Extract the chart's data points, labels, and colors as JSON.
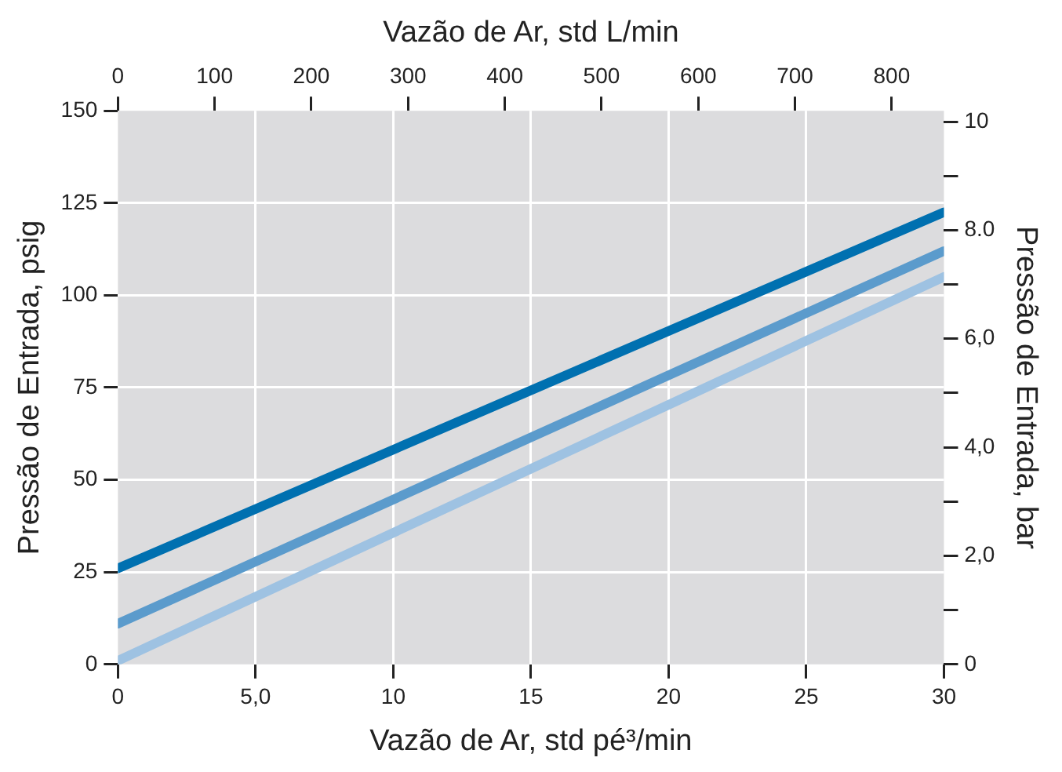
{
  "chart_data": {
    "type": "line",
    "xlabel": "Vazão de Ar, std pé³/min",
    "ylabel": "Pressão de Entrada, psig",
    "x2label": "Vazão de Ar, std L/min",
    "y2label": "Pressão de Entrada, bar",
    "x": [
      0,
      30
    ],
    "series": [
      {
        "color": "#0070b0",
        "values": [
          26,
          122.5
        ]
      },
      {
        "color": "#5b9bcc",
        "values": [
          11,
          112
        ]
      },
      {
        "color": "#9ec2e2",
        "values": [
          1,
          105
        ]
      }
    ],
    "xlim": [
      0,
      30
    ],
    "xticks": [
      0,
      {
        "value": 5,
        "label": "5,0"
      },
      10,
      15,
      20,
      25,
      30
    ],
    "ylim": [
      0,
      150
    ],
    "yticks": [
      0,
      25,
      50,
      75,
      100,
      125,
      150
    ],
    "x2lim": [
      0,
      854
    ],
    "x2ticks": [
      0,
      100,
      200,
      300,
      400,
      500,
      600,
      700,
      800
    ],
    "y2lim": [
      0,
      10.2
    ],
    "y2ticks": [
      0,
      {
        "value": 1,
        "label": null
      },
      {
        "value": 2,
        "label": "2,0"
      },
      {
        "value": 3,
        "label": null
      },
      {
        "value": 4,
        "label": "4,0"
      },
      {
        "value": 5,
        "label": null
      },
      {
        "value": 6,
        "label": "6,0"
      },
      {
        "value": 7,
        "label": null
      },
      {
        "value": 8,
        "label": "8.0"
      },
      {
        "value": 9,
        "label": null
      },
      10
    ],
    "grid": true,
    "legend": false,
    "marker": "none",
    "line_style": "solid"
  }
}
